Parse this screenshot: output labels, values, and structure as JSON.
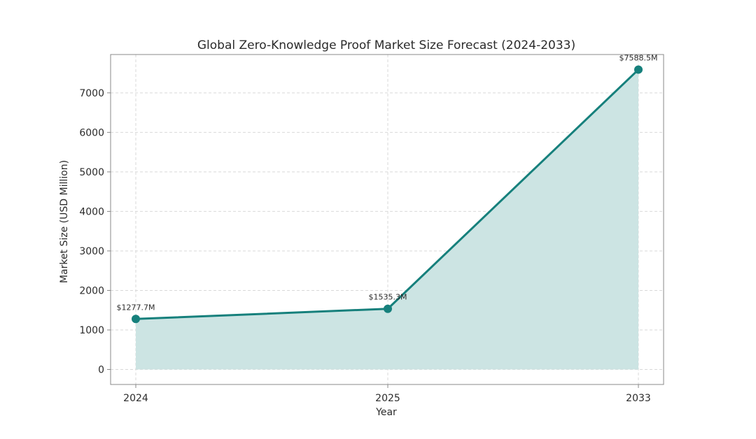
{
  "chart_data": {
    "type": "line",
    "title": "Global Zero-Knowledge Proof Market Size Forecast (2024-2033)",
    "xlabel": "Year",
    "ylabel": "Market Size (USD Million)",
    "categories": [
      "2024",
      "2025",
      "2033"
    ],
    "series": [
      {
        "values": [
          1277.7,
          1535.3,
          7588.5
        ],
        "data_labels": [
          "$1277.7M",
          "$1535.3M",
          "$7588.5M"
        ]
      }
    ],
    "yticks": [
      0,
      1000,
      2000,
      3000,
      4000,
      5000,
      6000,
      7000
    ],
    "ylim": [
      -380,
      7970
    ],
    "area_fill": true,
    "grid": true,
    "colors": {
      "line": "#16807c",
      "fill": "#cce4e3",
      "grid": "#d9d9d9",
      "axes": "#888888"
    }
  }
}
